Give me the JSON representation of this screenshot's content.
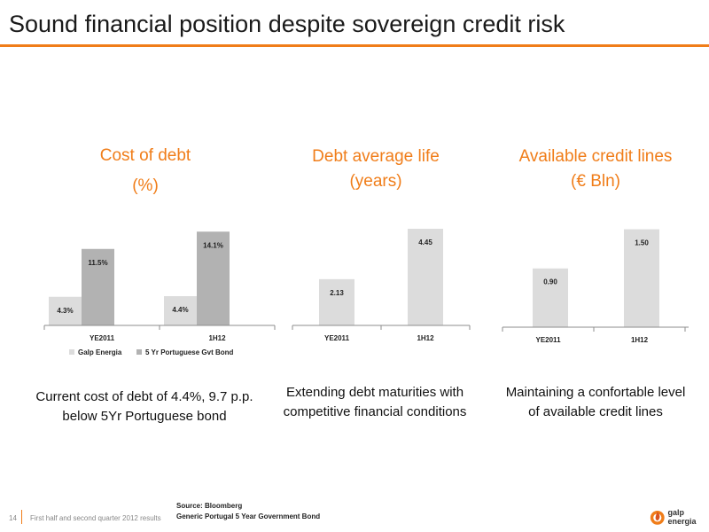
{
  "header": {
    "title": "Sound financial position despite sovereign credit risk"
  },
  "panels": [
    {
      "title_line1": "Cost of debt",
      "title_line2": "(%)",
      "caption": "Current cost of debt of 4.4%, 9.7 p.p. below 5Yr Portuguese bond"
    },
    {
      "title_line1": "Debt average life",
      "title_line2": "(years)",
      "caption": "Extending debt maturities with competitive financial conditions"
    },
    {
      "title_line1": "Available credit lines",
      "title_line2": "(€ Bln)",
      "caption": "Maintaining a confortable level of available credit lines"
    }
  ],
  "chart_data": [
    {
      "type": "bar",
      "categories": [
        "YE2011",
        "1H12"
      ],
      "series": [
        {
          "name": "Galp Energia",
          "values": [
            4.3,
            4.4
          ],
          "labels": [
            "4.3%",
            "4.4%"
          ]
        },
        {
          "name": "5 Yr Portuguese Gvt Bond",
          "values": [
            11.5,
            14.1
          ],
          "labels": [
            "11.5%",
            "14.1%"
          ]
        }
      ],
      "title": "Cost of debt (%)",
      "ylim": [
        0,
        16
      ],
      "legend": "bottom",
      "grid": false
    },
    {
      "type": "bar",
      "categories": [
        "YE2011",
        "1H12"
      ],
      "series": [
        {
          "name": "",
          "values": [
            2.13,
            4.45
          ],
          "labels": [
            "2.13",
            "4.45"
          ]
        }
      ],
      "title": "Debt average life (years)",
      "ylim": [
        0,
        4.9
      ],
      "grid": false
    },
    {
      "type": "bar",
      "categories": [
        "YE2011",
        "1H12"
      ],
      "series": [
        {
          "name": "",
          "values": [
            0.9,
            1.5
          ],
          "labels": [
            "0.90",
            "1.50"
          ]
        }
      ],
      "title": "Available credit lines (€ Bln)",
      "ylim": [
        0,
        1.63
      ],
      "grid": false
    }
  ],
  "colors": {
    "accent": "#f07d19",
    "bar_light": "#dcdcdc",
    "bar_dark": "#b2b2b2",
    "axis": "#8c8c8c"
  },
  "footer": {
    "page_number": "14",
    "text": "First half and second quarter 2012 results",
    "source_line1": "Source: Bloomberg",
    "source_line2": "Generic Portugal 5 Year Government Bond",
    "logo_text": "galp energia",
    "logo_icon": "galp-flame-icon"
  }
}
